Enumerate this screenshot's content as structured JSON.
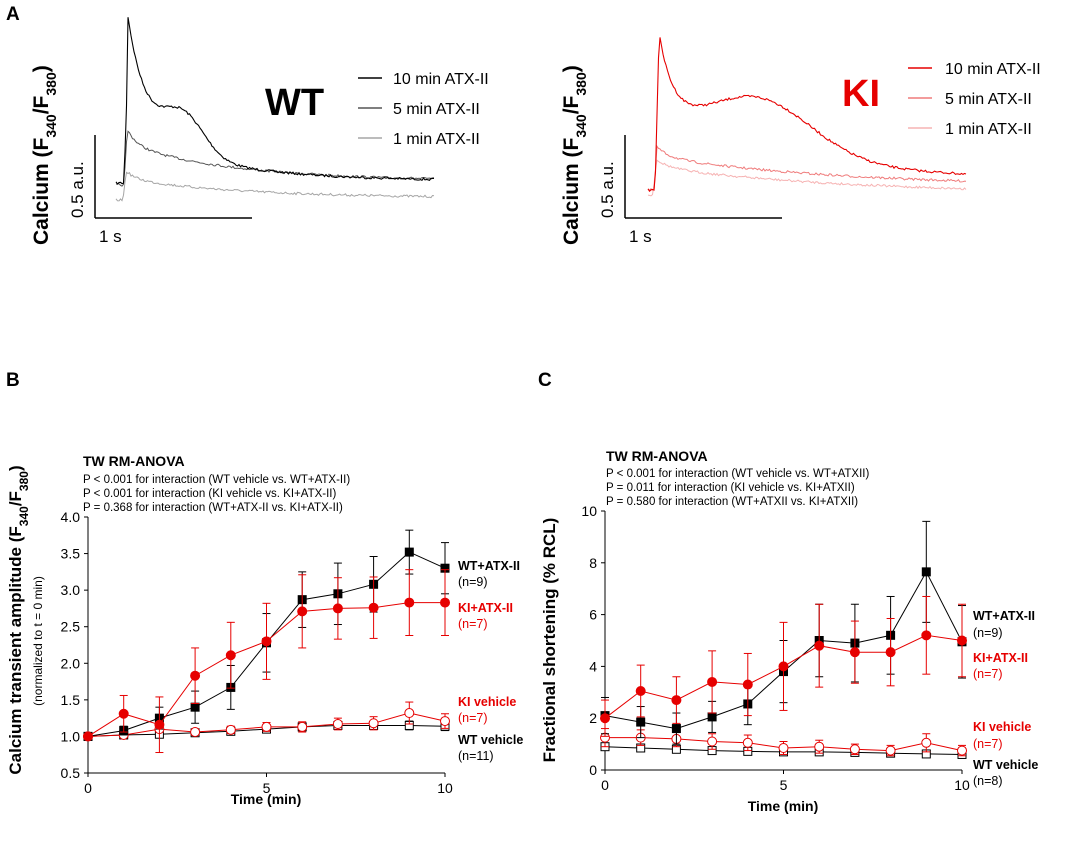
{
  "panel_labels": {
    "a": "A",
    "b": "B",
    "c": "C"
  },
  "panel_a": {
    "y_label_prefix": "Calcium (F",
    "y_sub1": "340",
    "y_mid": "/F",
    "y_sub2": "380",
    "y_suffix": ")",
    "scale_y_label": "0.5 a.u.",
    "scale_x_label": "1 s",
    "wt": {
      "genotype": "WT",
      "legend": [
        "10 min ATX-II",
        "5 min ATX-II",
        "1 min ATX-II"
      ],
      "colors": [
        "#000000",
        "#555555",
        "#a6a6a6"
      ]
    },
    "ki": {
      "genotype": "KI",
      "legend": [
        "10 min ATX-II",
        "5 min ATX-II",
        "1 min ATX-II"
      ],
      "colors": [
        "#e60000",
        "#ef7c7c",
        "#f6b3b3"
      ]
    }
  },
  "colors": {
    "wt": "#000000",
    "ki": "#e60000"
  },
  "chart_data": [
    {
      "type": "line",
      "panel": "B",
      "title": "TW RM-ANOVA",
      "stats": [
        "P < 0.001 for interaction (WT vehicle vs. WT+ATX-II)",
        "P < 0.001 for interaction (KI vehicle vs. KI+ATX-II)",
        "P = 0.368 for interaction (WT+ATX-II vs. KI+ATX-II)"
      ],
      "xlabel": "Time (min)",
      "ylabel_prefix": "Calcium transient amplitude (F",
      "ylabel_sub1": "340",
      "ylabel_mid": "/F",
      "ylabel_sub2": "380",
      "ylabel_suffix": ")",
      "ylabel_sub": "(normalized to t = 0 min)",
      "xlim": [
        0,
        10
      ],
      "ylim": [
        0.5,
        4.0
      ],
      "xticks": [
        0,
        5,
        10
      ],
      "yticks": [
        "0.5",
        "1.0",
        "1.5",
        "2.0",
        "2.5",
        "3.0",
        "3.5",
        "4.0"
      ],
      "x": [
        0,
        1,
        2,
        3,
        4,
        5,
        6,
        7,
        8,
        9,
        10
      ],
      "series": [
        {
          "name": "WT+ATX-II",
          "n": "(n=9)",
          "color": "#000000",
          "marker": "square",
          "filled": true,
          "values": [
            1.0,
            1.08,
            1.25,
            1.4,
            1.67,
            2.28,
            2.87,
            2.95,
            3.08,
            3.52,
            3.3
          ],
          "errors": [
            0,
            0.06,
            0.15,
            0.22,
            0.3,
            0.4,
            0.38,
            0.42,
            0.38,
            0.3,
            0.35
          ]
        },
        {
          "name": "KI+ATX-II",
          "n": "(n=7)",
          "color": "#e60000",
          "marker": "circle",
          "filled": true,
          "values": [
            1.0,
            1.31,
            1.16,
            1.83,
            2.11,
            2.3,
            2.71,
            2.75,
            2.76,
            2.83,
            2.83
          ],
          "errors": [
            0,
            0.25,
            0.38,
            0.38,
            0.45,
            0.52,
            0.5,
            0.42,
            0.42,
            0.45,
            0.45
          ]
        },
        {
          "name": "KI vehicle",
          "n": "(n=7)",
          "color": "#e60000",
          "marker": "circle",
          "filled": false,
          "values": [
            1.0,
            1.02,
            1.1,
            1.06,
            1.09,
            1.13,
            1.13,
            1.17,
            1.18,
            1.32,
            1.21
          ],
          "errors": [
            0,
            0.03,
            0.04,
            0.04,
            0.05,
            0.06,
            0.07,
            0.08,
            0.09,
            0.15,
            0.1
          ]
        },
        {
          "name": "WT vehicle",
          "n": "(n=11)",
          "color": "#000000",
          "marker": "square",
          "filled": false,
          "values": [
            1.0,
            1.02,
            1.03,
            1.05,
            1.07,
            1.1,
            1.13,
            1.15,
            1.15,
            1.15,
            1.14
          ],
          "errors": [
            0,
            0.02,
            0.02,
            0.03,
            0.03,
            0.04,
            0.04,
            0.05,
            0.05,
            0.06,
            0.06
          ]
        }
      ]
    },
    {
      "type": "line",
      "panel": "C",
      "title": "TW RM-ANOVA",
      "stats": [
        "P < 0.001 for interaction (WT vehicle vs. WT+ATXII)",
        "P = 0.011 for interaction (KI vehicle vs. KI+ATXII)",
        "P = 0.580 for interaction (WT+ATXII vs. KI+ATXII)"
      ],
      "xlabel": "Time (min)",
      "ylabel": "Fractional shortening (% RCL)",
      "xlim": [
        0,
        10
      ],
      "ylim": [
        0,
        10
      ],
      "xticks": [
        0,
        5,
        10
      ],
      "yticks": [
        "0",
        "2",
        "4",
        "6",
        "8",
        "10"
      ],
      "x": [
        0,
        1,
        2,
        3,
        4,
        5,
        6,
        7,
        8,
        9,
        10
      ],
      "series": [
        {
          "name": "WT+ATX-II",
          "n": "(n=9)",
          "color": "#000000",
          "marker": "square",
          "filled": true,
          "values": [
            2.1,
            1.85,
            1.6,
            2.05,
            2.55,
            3.8,
            5.0,
            4.9,
            5.2,
            7.65,
            4.95
          ],
          "errors": [
            0.7,
            0.6,
            0.6,
            0.6,
            0.8,
            1.2,
            1.4,
            1.5,
            1.5,
            1.95,
            1.4
          ]
        },
        {
          "name": "KI+ATX-II",
          "n": "(n=7)",
          "color": "#e60000",
          "marker": "circle",
          "filled": true,
          "values": [
            2.0,
            3.05,
            2.7,
            3.4,
            3.3,
            4.0,
            4.8,
            4.55,
            4.55,
            5.2,
            5.0
          ],
          "errors": [
            0.7,
            1.0,
            0.9,
            1.2,
            1.2,
            1.7,
            1.6,
            1.2,
            1.3,
            1.5,
            1.4
          ]
        },
        {
          "name": "KI vehicle",
          "n": "(n=7)",
          "color": "#e60000",
          "marker": "circle",
          "filled": false,
          "values": [
            1.25,
            1.25,
            1.2,
            1.1,
            1.05,
            0.85,
            0.9,
            0.8,
            0.75,
            1.05,
            0.75
          ],
          "errors": [
            0.35,
            0.3,
            0.3,
            0.3,
            0.3,
            0.25,
            0.25,
            0.2,
            0.2,
            0.35,
            0.2
          ]
        },
        {
          "name": "WT vehicle",
          "n": "(n=8)",
          "color": "#000000",
          "marker": "square",
          "filled": false,
          "values": [
            0.9,
            0.85,
            0.8,
            0.75,
            0.72,
            0.7,
            0.7,
            0.68,
            0.65,
            0.62,
            0.6
          ],
          "errors": [
            0.1,
            0.1,
            0.1,
            0.1,
            0.1,
            0.1,
            0.1,
            0.1,
            0.1,
            0.1,
            0.1
          ]
        }
      ]
    }
  ]
}
